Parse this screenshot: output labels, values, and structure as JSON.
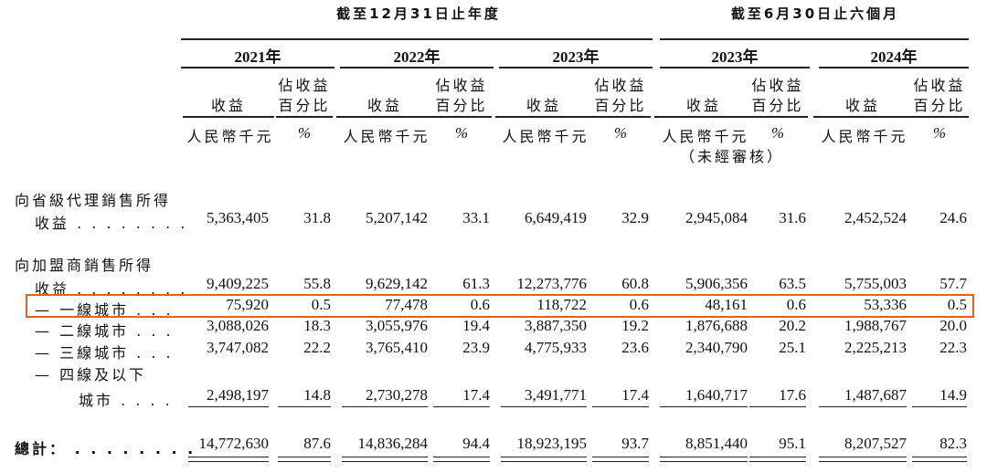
{
  "periods": {
    "fy": "截至12月31日止年度",
    "h1": "截至6月30日止六個月"
  },
  "years": [
    "2021年",
    "2022年",
    "2023年",
    "2023年",
    "2024年"
  ],
  "col_headers": {
    "revenue": "收益",
    "pct_line1": "佔收益",
    "pct_line2": "百分比",
    "unit_rmb": "人民幣千元",
    "unit_pct": "%",
    "unaudited": "（未經審核）"
  },
  "rows": [
    {
      "label_line1": "向省級代理銷售所得",
      "label_line2": "收益 . . . . . . . .",
      "values": [
        "5,363,405",
        "31.8",
        "5,207,142",
        "33.1",
        "6,649,419",
        "32.9",
        "2,945,084",
        "31.6",
        "2,452,524",
        "24.6"
      ]
    },
    {
      "label_line1": "向加盟商銷售所得",
      "label_line2": "收益 . . . . . . . .",
      "values": [
        "9,409,225",
        "55.8",
        "9,629,142",
        "61.3",
        "12,273,776",
        "60.8",
        "5,906,356",
        "63.5",
        "5,755,003",
        "57.7"
      ]
    },
    {
      "label": "— 一線城市 . . .",
      "values": [
        "75,920",
        "0.5",
        "77,478",
        "0.6",
        "118,722",
        "0.6",
        "48,161",
        "0.6",
        "53,336",
        "0.5"
      ]
    },
    {
      "label": "— 二線城市 . . .",
      "values": [
        "3,088,026",
        "18.3",
        "3,055,976",
        "19.4",
        "3,887,350",
        "19.2",
        "1,876,688",
        "20.2",
        "1,988,767",
        "20.0"
      ]
    },
    {
      "label": "— 三線城市 . . .",
      "values": [
        "3,747,082",
        "22.2",
        "3,765,410",
        "23.9",
        "4,775,933",
        "23.6",
        "2,340,790",
        "25.1",
        "2,225,213",
        "22.3"
      ]
    },
    {
      "label_line1": "— 四線及以下",
      "label_line2": "城市 . . . .",
      "values": [
        "2,498,197",
        "14.8",
        "2,730,278",
        "17.4",
        "3,491,771",
        "17.4",
        "1,640,717",
        "17.6",
        "1,487,687",
        "14.9"
      ]
    },
    {
      "label": "總計： . . . . . . . .",
      "values": [
        "14,772,630",
        "87.6",
        "14,836,284",
        "94.4",
        "18,923,195",
        "93.7",
        "8,851,440",
        "95.1",
        "8,207,527",
        "82.3"
      ]
    }
  ],
  "highlight_color": "#e0641f"
}
